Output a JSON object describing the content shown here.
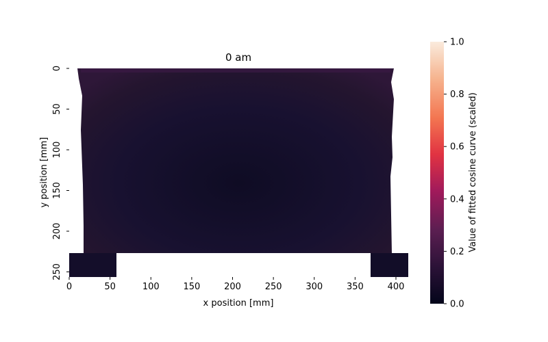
{
  "chart_data": {
    "type": "heatmap",
    "title": "0 am",
    "xlabel": "x position [mm]",
    "ylabel": "y position [mm]",
    "xlim": [
      0,
      415
    ],
    "ylim": [
      258,
      0
    ],
    "x_ticks": [
      0,
      50,
      100,
      150,
      200,
      250,
      300,
      350,
      400
    ],
    "y_ticks": [
      0,
      50,
      100,
      150,
      200,
      250
    ],
    "colorbar": {
      "label": "Value of fitted cosine curve (scaled)",
      "range": [
        0,
        1
      ],
      "ticks": [
        0.0,
        0.2,
        0.4,
        0.6,
        0.8,
        1.0
      ],
      "colormap": "rocket",
      "stops": [
        "#03051a",
        "#2b1237",
        "#5b1e51",
        "#a11a5b",
        "#e13342",
        "#f37651",
        "#f6b48f",
        "#faebdd"
      ]
    },
    "grid": false,
    "data_region": {
      "description_values_mm": true,
      "main_block": {
        "x": [
          10,
          395
        ],
        "y": [
          0,
          227
        ]
      },
      "left_foot": {
        "x": [
          0,
          58
        ],
        "y": [
          227,
          258
        ]
      },
      "right_foot": {
        "x": [
          368,
          413
        ],
        "y": [
          227,
          258
        ]
      },
      "value_estimate": {
        "center": 0.02,
        "edges": 0.1
      }
    }
  }
}
